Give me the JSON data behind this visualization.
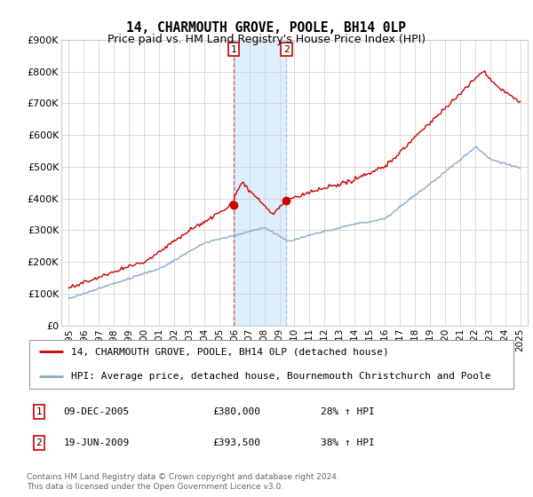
{
  "title": "14, CHARMOUTH GROVE, POOLE, BH14 0LP",
  "subtitle": "Price paid vs. HM Land Registry's House Price Index (HPI)",
  "legend_line1": "14, CHARMOUTH GROVE, POOLE, BH14 0LP (detached house)",
  "legend_line2": "HPI: Average price, detached house, Bournemouth Christchurch and Poole",
  "footnote": "Contains HM Land Registry data © Crown copyright and database right 2024.\nThis data is licensed under the Open Government Licence v3.0.",
  "sale1_date_str": "09-DEC-2005",
  "sale1_price_str": "£380,000",
  "sale1_hpi_str": "28% ↑ HPI",
  "sale1_x": 2005.94,
  "sale1_y": 380000,
  "sale2_date_str": "19-JUN-2009",
  "sale2_price_str": "£393,500",
  "sale2_hpi_str": "38% ↑ HPI",
  "sale2_x": 2009.46,
  "sale2_y": 393500,
  "shade_color": "#ddeeff",
  "red_color": "#cc0000",
  "blue_color": "#88aacc",
  "vline1_color": "#dd4444",
  "vline2_color": "#aaaacc",
  "marker_box_color": "#cc0000",
  "grid_color": "#cccccc",
  "ylim": [
    0,
    900000
  ],
  "xlim": [
    1994.5,
    2025.5
  ],
  "yticks": [
    0,
    100000,
    200000,
    300000,
    400000,
    500000,
    600000,
    700000,
    800000,
    900000
  ],
  "ytick_labels": [
    "£0",
    "£100K",
    "£200K",
    "£300K",
    "£400K",
    "£500K",
    "£600K",
    "£700K",
    "£800K",
    "£900K"
  ],
  "title_fontsize": 10.5,
  "subtitle_fontsize": 9,
  "axis_fontsize": 8,
  "legend_fontsize": 8
}
